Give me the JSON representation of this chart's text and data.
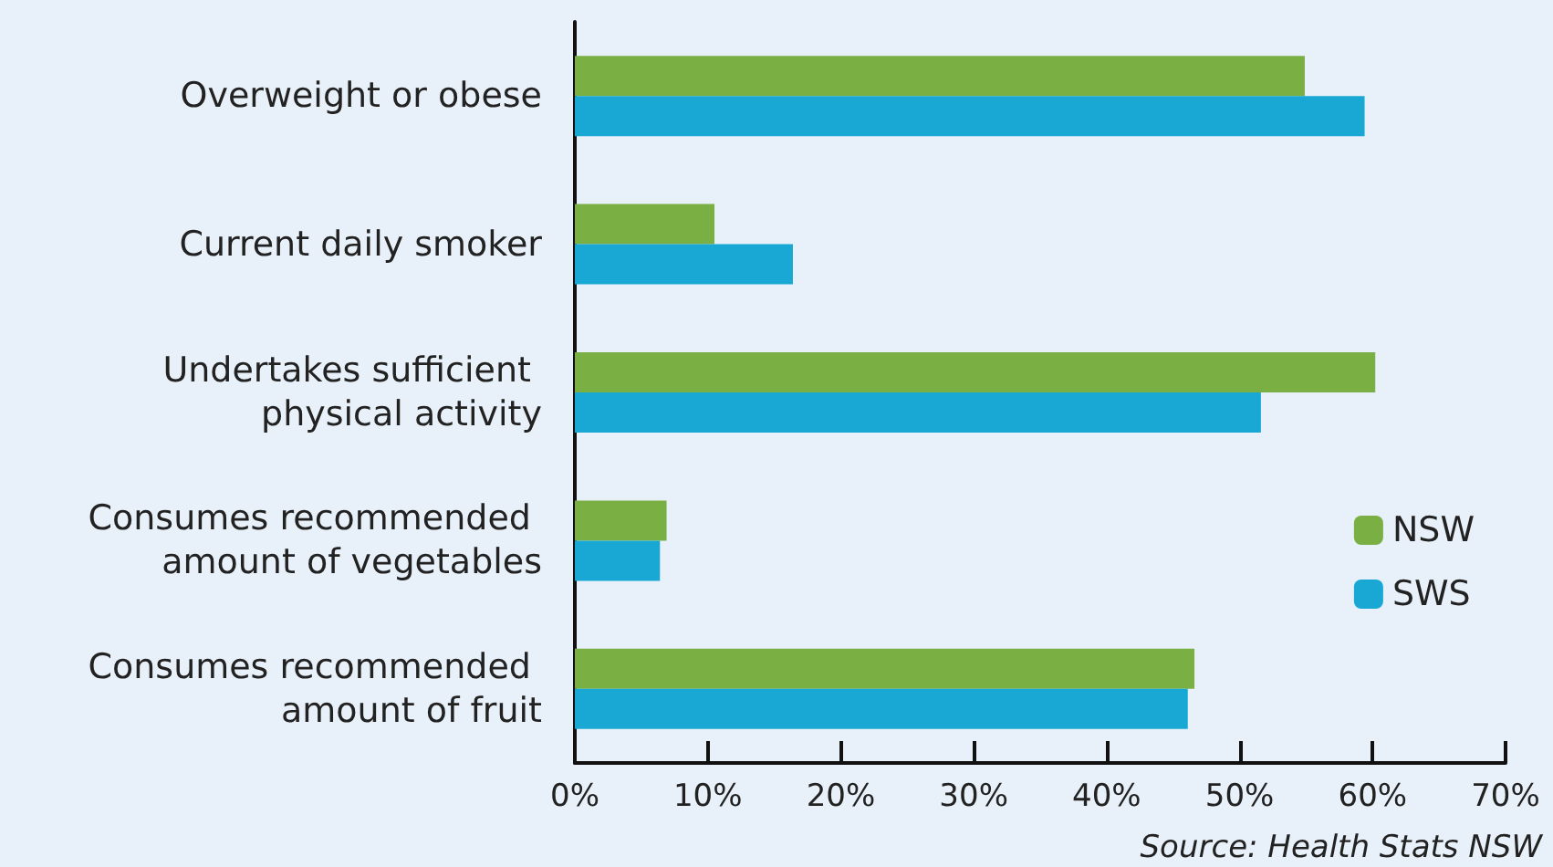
{
  "chart_data": {
    "type": "bar",
    "orientation": "horizontal",
    "categories": [
      "Overweight or obese",
      "Current daily smoker",
      "Undertakes sufficient physical activity",
      "Consumes recommended amount of vegetables",
      "Consumes recommended amount of fruit"
    ],
    "series": [
      {
        "name": "NSW",
        "color": "#7ab043",
        "values": [
          54.9,
          10.5,
          60.2,
          6.9,
          46.6
        ]
      },
      {
        "name": "SWS",
        "color": "#18a8d3",
        "values": [
          59.4,
          16.4,
          51.6,
          6.4,
          46.1
        ]
      }
    ],
    "xlim": [
      0,
      70
    ],
    "xticks": [
      {
        "value": 0,
        "label": "0%"
      },
      {
        "value": 10,
        "label": "10%"
      },
      {
        "value": 20,
        "label": "20%"
      },
      {
        "value": 30,
        "label": "30%"
      },
      {
        "value": 40,
        "label": "40%"
      },
      {
        "value": 50,
        "label": "50%"
      },
      {
        "value": 60,
        "label": "60%"
      },
      {
        "value": 70,
        "label": "70%"
      }
    ],
    "grid": false,
    "legend": "bottom right",
    "annotations": [
      "Source: Health Stats NSW"
    ]
  }
}
